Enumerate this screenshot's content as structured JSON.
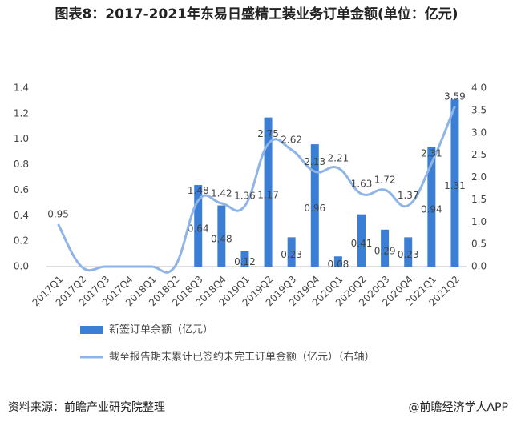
{
  "chart_data": {
    "type": "bar",
    "title": "图表8：2017-2021年东易日盛精工装业务订单金额(单位：亿元)",
    "categories": [
      "2017Q1",
      "2017Q2",
      "2017Q3",
      "2017Q4",
      "2018Q1",
      "2018Q2",
      "2018Q3",
      "2018Q4",
      "2019Q1",
      "2019Q2",
      "2019Q3",
      "2019Q4",
      "2020Q1",
      "2020Q2",
      "2020Q3",
      "2020Q4",
      "2021Q1",
      "2021Q2"
    ],
    "series": [
      {
        "name": "新签订单余额（亿元）",
        "type": "bar",
        "color": "#3a7fd5",
        "values": [
          0,
          0,
          0,
          0,
          0,
          0,
          0.64,
          0.48,
          0.12,
          1.17,
          0.23,
          0.96,
          0.08,
          0.41,
          0.29,
          0.23,
          0.94,
          1.31
        ]
      },
      {
        "name": "截至报告期末累计已签约未完工订单金额（亿元）（右轴）",
        "type": "line",
        "color": "#8fb4e8",
        "axis": "y2",
        "values": [
          0.95,
          0,
          0,
          0,
          0,
          0,
          1.48,
          1.42,
          1.36,
          2.75,
          2.62,
          2.13,
          2.21,
          1.63,
          1.72,
          1.37,
          2.31,
          3.59
        ]
      }
    ],
    "ylim": [
      0,
      1.4
    ],
    "yticks": [
      {
        "value": 0,
        "label": "0.0"
      },
      0.2,
      0.4,
      0.6,
      0.8,
      {
        "value": 1,
        "label": "1.0"
      },
      1.2,
      1.4
    ],
    "y2lim": [
      0,
      4
    ],
    "y2ticks": [
      {
        "value": 0,
        "label": "0.0"
      },
      0.5,
      {
        "value": 1,
        "label": "1.0"
      },
      1.5,
      {
        "value": 2,
        "label": "2.0"
      },
      2.5,
      {
        "value": 3,
        "label": "3.0"
      },
      3.5,
      {
        "value": 4,
        "label": "4.0"
      }
    ],
    "source": "资料来源：前瞻产业研究院整理",
    "credit": "@前瞻经济学人APP"
  }
}
